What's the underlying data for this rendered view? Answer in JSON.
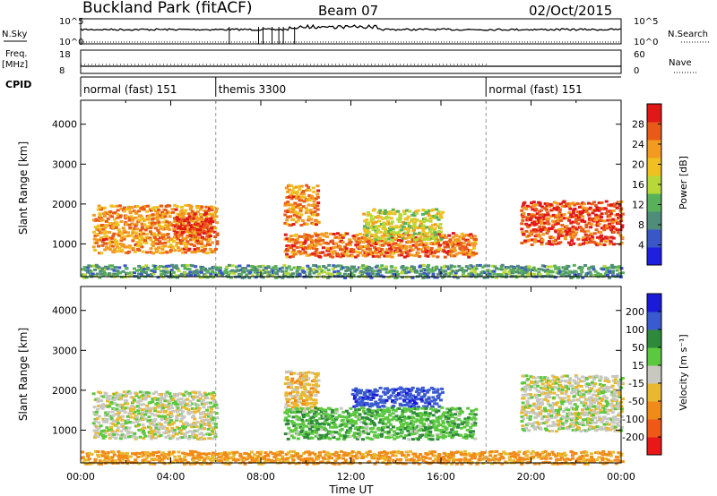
{
  "header": {
    "station": "Buckland Park (fitACF)",
    "beam": "Beam 07",
    "date": "02/Oct/2015"
  },
  "strip_labels": {
    "nsky": "N.Sky",
    "nsearch": "N.Search",
    "freq_line1": "Freq.",
    "freq_line2": "[MHz]",
    "nave": "Nave",
    "cpid": "CPID",
    "noise_exp_max": "10^5",
    "noise_exp_min": "10^0",
    "freq_max": "18",
    "freq_min": "8",
    "nave_max": "60",
    "nave_min": "0"
  },
  "cpid_segments": [
    {
      "label": "normal (fast) 151",
      "start_hour": 0
    },
    {
      "label": "themis 3300",
      "start_hour": 6
    },
    {
      "label": "normal (fast) 151",
      "start_hour": 18
    }
  ],
  "x_axis": {
    "title": "Time UT",
    "ticks": [
      "00:00",
      "04:00",
      "08:00",
      "12:00",
      "16:00",
      "20:00",
      "00:00"
    ]
  },
  "y_axis": {
    "title": "Slant Range [km]",
    "ticks": [
      "1000",
      "2000",
      "3000",
      "4000"
    ]
  },
  "power_scale": {
    "title": "Power [dB]",
    "ticks": [
      "4",
      "8",
      "12",
      "16",
      "20",
      "24",
      "28"
    ],
    "colors": [
      "#1f1fe0",
      "#3a57c8",
      "#4f8c7a",
      "#59b05a",
      "#b8d83a",
      "#f0c020",
      "#f39a20",
      "#e85a18",
      "#e01818"
    ]
  },
  "velocity_scale": {
    "title": "Velocity [m s⁻¹]",
    "ticks": [
      "200",
      "100",
      "50",
      "15",
      "-15",
      "-50",
      "-100",
      "-200"
    ],
    "colors": [
      "#1a1ad8",
      "#3a5ad0",
      "#2e8a3a",
      "#5cc840",
      "#c8c8c0",
      "#e8b830",
      "#f08a18",
      "#f05818",
      "#e81818"
    ]
  },
  "chart_data": [
    {
      "type": "heatmap",
      "title": "Power",
      "xlabel": "Time UT",
      "ylabel": "Slant Range [km]",
      "xlim_hours": [
        0,
        24
      ],
      "ylim_km": [
        180,
        4600
      ],
      "zlabel": "Power [dB]",
      "zlim": [
        0,
        30
      ],
      "regions": [
        {
          "t": [
            0.5,
            6.0
          ],
          "r": [
            800,
            2000
          ],
          "z": 22
        },
        {
          "t": [
            4.0,
            5.8
          ],
          "r": [
            1200,
            1800
          ],
          "z": 27
        },
        {
          "t": [
            9.0,
            10.5
          ],
          "r": [
            1500,
            2500
          ],
          "z": 22
        },
        {
          "t": [
            9.0,
            17.5
          ],
          "r": [
            700,
            1300
          ],
          "z": 24
        },
        {
          "t": [
            12.5,
            16.0
          ],
          "r": [
            1100,
            1900
          ],
          "z": 16
        },
        {
          "t": [
            19.5,
            24.0
          ],
          "r": [
            1000,
            2100
          ],
          "z": 26
        },
        {
          "t": [
            0.0,
            24.0
          ],
          "r": [
            180,
            500
          ],
          "z": 10
        }
      ]
    },
    {
      "type": "heatmap",
      "title": "Velocity",
      "xlabel": "Time UT",
      "ylabel": "Slant Range [km]",
      "xlim_hours": [
        0,
        24
      ],
      "ylim_km": [
        180,
        4600
      ],
      "zlabel": "Velocity [m s⁻¹]",
      "zlim": [
        -200,
        200
      ],
      "regions": [
        {
          "t": [
            0.5,
            6.0
          ],
          "r": [
            800,
            2000
          ],
          "z": 0
        },
        {
          "t": [
            9.0,
            10.5
          ],
          "r": [
            1500,
            2500
          ],
          "z": -30
        },
        {
          "t": [
            12.0,
            16.0
          ],
          "r": [
            1600,
            2100
          ],
          "z": 180
        },
        {
          "t": [
            9.0,
            17.5
          ],
          "r": [
            800,
            1600
          ],
          "z": 40
        },
        {
          "t": [
            19.5,
            24.0
          ],
          "r": [
            1000,
            2400
          ],
          "z": 0
        },
        {
          "t": [
            0.0,
            24.0
          ],
          "r": [
            180,
            500
          ],
          "z": -60
        }
      ]
    }
  ]
}
